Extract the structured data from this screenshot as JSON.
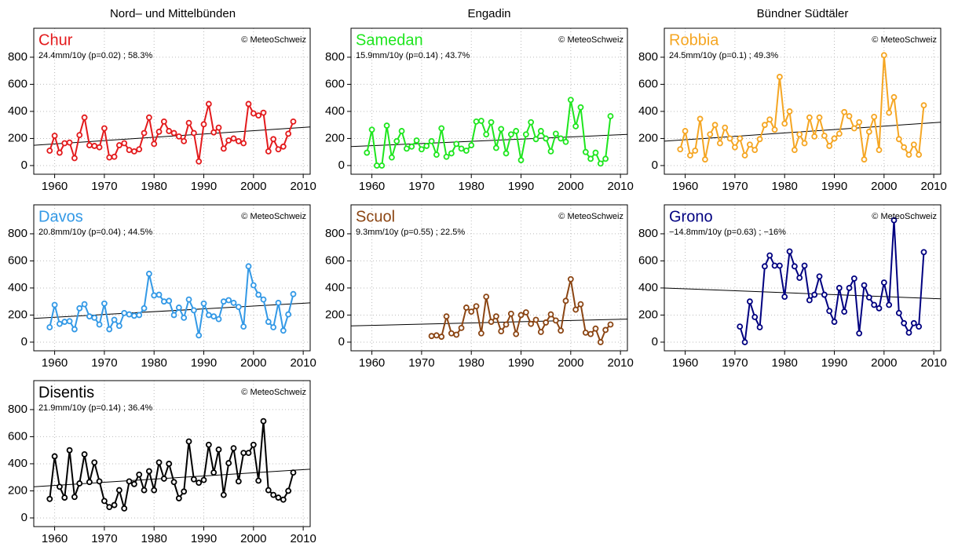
{
  "column_titles": [
    "Nord– und Mittelbünden",
    "Engadin",
    "Bündner Südtäler"
  ],
  "chart_data": [
    {
      "type": "line",
      "title": "Chur",
      "subtitle": "24.4mm/10y (p=0.02) ; 58.3%",
      "annotation": "© MeteoSchweiz",
      "color": "#e31a1c",
      "x": [
        1959,
        1960,
        1961,
        1962,
        1963,
        1964,
        1965,
        1966,
        1967,
        1968,
        1969,
        1970,
        1971,
        1972,
        1973,
        1974,
        1975,
        1976,
        1977,
        1978,
        1979,
        1980,
        1981,
        1982,
        1983,
        1984,
        1985,
        1986,
        1987,
        1988,
        1989,
        1990,
        1991,
        1992,
        1993,
        1994,
        1995,
        1996,
        1997,
        1998,
        1999,
        2000,
        2001,
        2002,
        2003,
        2004,
        2005,
        2006,
        2007,
        2008
      ],
      "values": [
        110,
        220,
        95,
        165,
        170,
        55,
        225,
        355,
        150,
        145,
        135,
        275,
        60,
        65,
        150,
        165,
        115,
        105,
        120,
        240,
        355,
        160,
        250,
        325,
        255,
        240,
        215,
        180,
        315,
        240,
        30,
        305,
        455,
        245,
        280,
        125,
        185,
        200,
        180,
        165,
        455,
        385,
        370,
        390,
        105,
        195,
        120,
        140,
        235,
        325
      ],
      "trend": [
        150,
        285
      ],
      "xlim": [
        1955.8,
        2011.4
      ],
      "ylim": [
        -64,
        1014
      ],
      "xticks": [
        1960,
        1970,
        1980,
        1990,
        2000,
        2010
      ],
      "yticks": [
        0,
        200,
        400,
        600,
        800
      ],
      "grid": true
    },
    {
      "type": "line",
      "title": "Samedan",
      "subtitle": "15.9mm/10y (p=0.14) ; 43.7%",
      "annotation": "© MeteoSchweiz",
      "color": "#1ee61e",
      "x": [
        1959,
        1960,
        1961,
        1962,
        1963,
        1964,
        1965,
        1966,
        1967,
        1968,
        1969,
        1970,
        1971,
        1972,
        1973,
        1974,
        1975,
        1976,
        1977,
        1978,
        1979,
        1980,
        1981,
        1982,
        1983,
        1984,
        1985,
        1986,
        1987,
        1988,
        1989,
        1990,
        1991,
        1992,
        1993,
        1994,
        1995,
        1996,
        1997,
        1998,
        1999,
        2000,
        2001,
        2002,
        2003,
        2004,
        2005,
        2006,
        2007,
        2008
      ],
      "values": [
        95,
        265,
        0,
        0,
        295,
        60,
        180,
        255,
        125,
        140,
        185,
        120,
        145,
        180,
        80,
        275,
        65,
        90,
        160,
        125,
        110,
        150,
        325,
        330,
        230,
        320,
        130,
        270,
        90,
        230,
        255,
        40,
        230,
        320,
        195,
        255,
        200,
        105,
        235,
        200,
        175,
        485,
        290,
        430,
        100,
        50,
        95,
        15,
        50,
        365
      ],
      "trend": [
        140,
        230
      ],
      "xlim": [
        1955.8,
        2011.4
      ],
      "ylim": [
        -64,
        1014
      ],
      "xticks": [
        1960,
        1970,
        1980,
        1990,
        2000,
        2010
      ],
      "yticks": [
        0,
        200,
        400,
        600,
        800
      ],
      "grid": true
    },
    {
      "type": "line",
      "title": "Robbia",
      "subtitle": "24.5mm/10y (p=0.1) ; 49.3%",
      "annotation": "© MeteoSchweiz",
      "color": "#f5a623",
      "x": [
        1959,
        1960,
        1961,
        1962,
        1963,
        1964,
        1965,
        1966,
        1967,
        1968,
        1969,
        1970,
        1971,
        1972,
        1973,
        1974,
        1975,
        1976,
        1977,
        1978,
        1979,
        1980,
        1981,
        1982,
        1983,
        1984,
        1985,
        1986,
        1987,
        1988,
        1989,
        1990,
        1991,
        1992,
        1993,
        1994,
        1995,
        1996,
        1997,
        1998,
        1999,
        2000,
        2001,
        2002,
        2003,
        2004,
        2005,
        2006,
        2007,
        2008
      ],
      "values": [
        120,
        255,
        75,
        110,
        345,
        45,
        230,
        300,
        165,
        280,
        200,
        135,
        200,
        75,
        155,
        115,
        195,
        300,
        340,
        265,
        655,
        310,
        400,
        115,
        230,
        165,
        355,
        215,
        355,
        220,
        145,
        200,
        235,
        395,
        365,
        275,
        320,
        45,
        250,
        360,
        115,
        815,
        390,
        505,
        195,
        135,
        80,
        155,
        80,
        445
      ],
      "trend": [
        180,
        320
      ],
      "xlim": [
        1955.8,
        2011.4
      ],
      "ylim": [
        -64,
        1014
      ],
      "xticks": [
        1960,
        1970,
        1980,
        1990,
        2000,
        2010
      ],
      "yticks": [
        0,
        200,
        400,
        600,
        800
      ],
      "grid": true
    },
    {
      "type": "line",
      "title": "Davos",
      "subtitle": "20.8mm/10y (p=0.04) ; 44.5%",
      "annotation": "© MeteoSchweiz",
      "color": "#3399e6",
      "x": [
        1959,
        1960,
        1961,
        1962,
        1963,
        1964,
        1965,
        1966,
        1967,
        1968,
        1969,
        1970,
        1971,
        1972,
        1973,
        1974,
        1975,
        1976,
        1977,
        1978,
        1979,
        1980,
        1981,
        1982,
        1983,
        1984,
        1985,
        1986,
        1987,
        1988,
        1989,
        1990,
        1991,
        1992,
        1993,
        1994,
        1995,
        1996,
        1997,
        1998,
        1999,
        2000,
        2001,
        2002,
        2003,
        2004,
        2005,
        2006,
        2007,
        2008
      ],
      "values": [
        110,
        275,
        135,
        150,
        155,
        95,
        250,
        280,
        190,
        180,
        130,
        285,
        95,
        165,
        120,
        215,
        205,
        195,
        200,
        250,
        505,
        345,
        350,
        300,
        305,
        200,
        255,
        180,
        315,
        235,
        50,
        285,
        200,
        190,
        170,
        300,
        310,
        290,
        260,
        115,
        560,
        420,
        350,
        315,
        150,
        110,
        290,
        85,
        205,
        355
      ],
      "trend": [
        175,
        290
      ],
      "xlim": [
        1955.8,
        2011.4
      ],
      "ylim": [
        -64,
        1014
      ],
      "xticks": [
        1960,
        1970,
        1980,
        1990,
        2000,
        2010
      ],
      "yticks": [
        0,
        200,
        400,
        600,
        800
      ],
      "grid": true
    },
    {
      "type": "line",
      "title": "Scuol",
      "subtitle": "9.3mm/10y (p=0.55) ; 22.5%",
      "annotation": "© MeteoSchweiz",
      "color": "#8b4513",
      "x": [
        1959,
        1960,
        1961,
        1962,
        1963,
        1964,
        1965,
        1966,
        1967,
        1968,
        1969,
        1970,
        1971,
        1972,
        1973,
        1974,
        1975,
        1976,
        1977,
        1978,
        1979,
        1980,
        1981,
        1982,
        1983,
        1984,
        1985,
        1986,
        1987,
        1988,
        1989,
        1990,
        1991,
        1992,
        1993,
        1994,
        1995,
        1996,
        1997,
        1998,
        1999,
        2000,
        2001,
        2002,
        2003,
        2004,
        2005,
        2006,
        2007,
        2008
      ],
      "values": [
        null,
        null,
        null,
        null,
        null,
        null,
        null,
        null,
        null,
        null,
        null,
        null,
        null,
        45,
        50,
        40,
        190,
        65,
        55,
        105,
        255,
        225,
        265,
        65,
        335,
        150,
        190,
        80,
        130,
        210,
        60,
        200,
        220,
        135,
        165,
        75,
        145,
        205,
        160,
        85,
        305,
        465,
        240,
        280,
        70,
        60,
        100,
        0,
        90,
        130
      ],
      "trend": [
        120,
        170
      ],
      "xlim": [
        1955.8,
        2011.4
      ],
      "ylim": [
        -64,
        1014
      ],
      "xticks": [
        1960,
        1970,
        1980,
        1990,
        2000,
        2010
      ],
      "yticks": [
        0,
        200,
        400,
        600,
        800
      ],
      "grid": true
    },
    {
      "type": "line",
      "title": "Grono",
      "subtitle": "−14.8mm/10y (p=0.63) ; −16%",
      "annotation": "© MeteoSchweiz",
      "color": "#000080",
      "x": [
        1959,
        1960,
        1961,
        1962,
        1963,
        1964,
        1965,
        1966,
        1967,
        1968,
        1969,
        1970,
        1971,
        1972,
        1973,
        1974,
        1975,
        1976,
        1977,
        1978,
        1979,
        1980,
        1981,
        1982,
        1983,
        1984,
        1985,
        1986,
        1987,
        1988,
        1989,
        1990,
        1991,
        1992,
        1993,
        1994,
        1995,
        1996,
        1997,
        1998,
        1999,
        2000,
        2001,
        2002,
        2003,
        2004,
        2005,
        2006,
        2007,
        2008
      ],
      "values": [
        null,
        null,
        null,
        null,
        null,
        null,
        null,
        null,
        null,
        null,
        null,
        null,
        115,
        0,
        300,
        185,
        110,
        560,
        640,
        565,
        565,
        335,
        670,
        560,
        475,
        565,
        310,
        350,
        485,
        350,
        230,
        150,
        400,
        225,
        400,
        470,
        65,
        420,
        330,
        275,
        250,
        440,
        275,
        900,
        215,
        140,
        70,
        140,
        115,
        665
      ],
      "trend": [
        400,
        320
      ],
      "xlim": [
        1955.8,
        2011.4
      ],
      "ylim": [
        -64,
        1014
      ],
      "xticks": [
        1960,
        1970,
        1980,
        1990,
        2000,
        2010
      ],
      "yticks": [
        0,
        200,
        400,
        600,
        800
      ],
      "grid": true
    },
    {
      "type": "line",
      "title": "Disentis",
      "subtitle": "21.9mm/10y (p=0.14) ; 36.4%",
      "annotation": "© MeteoSchweiz",
      "color": "#000000",
      "x": [
        1959,
        1960,
        1961,
        1962,
        1963,
        1964,
        1965,
        1966,
        1967,
        1968,
        1969,
        1970,
        1971,
        1972,
        1973,
        1974,
        1975,
        1976,
        1977,
        1978,
        1979,
        1980,
        1981,
        1982,
        1983,
        1984,
        1985,
        1986,
        1987,
        1988,
        1989,
        1990,
        1991,
        1992,
        1993,
        1994,
        1995,
        1996,
        1997,
        1998,
        1999,
        2000,
        2001,
        2002,
        2003,
        2004,
        2005,
        2006,
        2007,
        2008
      ],
      "values": [
        140,
        455,
        230,
        150,
        500,
        155,
        255,
        470,
        265,
        410,
        270,
        125,
        80,
        95,
        205,
        70,
        270,
        250,
        320,
        205,
        345,
        205,
        410,
        290,
        400,
        265,
        145,
        195,
        565,
        285,
        260,
        280,
        540,
        335,
        505,
        170,
        405,
        515,
        270,
        480,
        480,
        540,
        275,
        715,
        205,
        170,
        150,
        135,
        200,
        335
      ],
      "trend": [
        230,
        360
      ],
      "xlim": [
        1955.8,
        2011.4
      ],
      "ylim": [
        -64,
        1014
      ],
      "xticks": [
        1960,
        1970,
        1980,
        1990,
        2000,
        2010
      ],
      "yticks": [
        0,
        200,
        400,
        600,
        800
      ],
      "grid": true
    }
  ]
}
